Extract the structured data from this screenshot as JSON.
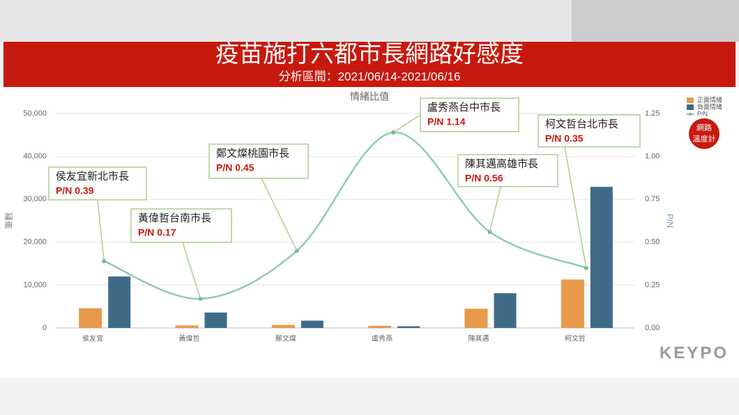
{
  "chart_data": {
    "type": "bar-line",
    "title": "疫苗施打六都市長網路好感度",
    "subtitle": "分析區間：2021/06/14-2021/06/16",
    "chart_title": "情緒比值",
    "ylabel": "筆數",
    "y2label": "P/N",
    "categories": [
      "侯友宜",
      "黃偉哲",
      "鄭文燦",
      "盧秀燕",
      "陳其邁",
      "柯文哲"
    ],
    "series": [
      {
        "name": "正面情緒",
        "color": "#e89a4c",
        "type": "bar",
        "values": [
          4600,
          600,
          700,
          500,
          4500,
          11300
        ]
      },
      {
        "name": "負面情緒",
        "color": "#3f6b89",
        "type": "bar",
        "values": [
          12000,
          3600,
          1700,
          400,
          8100,
          32900
        ]
      },
      {
        "name": "P/N",
        "color": "#8fcbb4",
        "type": "line",
        "axis": "y2",
        "values": [
          0.39,
          0.17,
          0.45,
          1.14,
          0.56,
          0.35
        ],
        "value_labels": [
          "P/N 0.39",
          "P/N 0.17",
          "P/N 0.45",
          "P/N 1.14",
          "P/N 0.56",
          "P/N 0.35"
        ]
      }
    ],
    "annotations": [
      "侯友宜新北市長",
      "黃偉哲台南市長",
      "鄭文燦桃園市長",
      "盧秀燕台中市長",
      "陳其邁高雄市長",
      "柯文哲台北市長"
    ],
    "ylim": [
      0,
      50000
    ],
    "yticks": [
      0,
      {
        "value": 10000,
        "label": "10,000"
      },
      {
        "value": 20000,
        "label": "20,000"
      },
      {
        "value": 30000,
        "label": "30,000"
      },
      {
        "value": 40000,
        "label": "40,000"
      },
      {
        "value": 50000,
        "label": "50,000"
      }
    ],
    "y2lim": [
      0,
      1.25
    ],
    "y2ticks": [
      {
        "value": 0,
        "label": "0.00"
      },
      {
        "value": 0.25,
        "label": "0.25"
      },
      {
        "value": 0.5,
        "label": "0.50"
      },
      {
        "value": 0.75,
        "label": "0.75"
      },
      {
        "value": 1,
        "label": "1.00"
      },
      {
        "value": 1.25,
        "label": "1.25"
      }
    ],
    "grid": true
  },
  "branding": {
    "badge": [
      "網路",
      "溫度計"
    ],
    "brand": "KEYPO"
  }
}
